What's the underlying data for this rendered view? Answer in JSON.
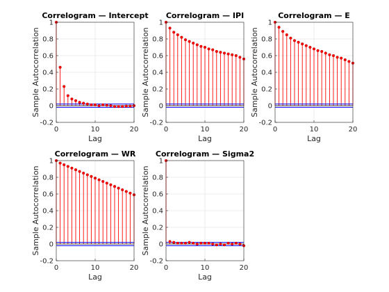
{
  "colors": {
    "stem": "#ff0000",
    "marker": "#ff0000",
    "bound": "#0000ff",
    "zero_line": "#000000",
    "grid": "#dedede",
    "axes": "#262626"
  },
  "chart_data": [
    {
      "type": "stem",
      "title": "Correlogram — Intercept",
      "xlabel": "Lag",
      "ylabel": "Sample Autocorrelation",
      "xlim": [
        0,
        20
      ],
      "ylim": [
        -0.2,
        1
      ],
      "xticks": [
        0,
        10,
        20
      ],
      "yticks": [
        -0.2,
        0,
        0.2,
        0.4,
        0.6,
        0.8,
        1
      ],
      "grid": true,
      "bounds": [
        0.02,
        -0.02
      ],
      "x": [
        0,
        1,
        2,
        3,
        4,
        5,
        6,
        7,
        8,
        9,
        10,
        11,
        12,
        13,
        14,
        15,
        16,
        17,
        18,
        19,
        20
      ],
      "values": [
        1,
        0.46,
        0.23,
        0.12,
        0.08,
        0.06,
        0.04,
        0.03,
        0.02,
        0.01,
        0.01,
        0.0,
        0.01,
        0.005,
        0.0,
        -0.01,
        -0.01,
        -0.01,
        -0.005,
        -0.005,
        0.0
      ]
    },
    {
      "type": "stem",
      "title": "Correlogram — IPI",
      "xlabel": "Lag",
      "ylabel": "Sample Autocorrelation",
      "xlim": [
        0,
        20
      ],
      "ylim": [
        -0.2,
        1
      ],
      "xticks": [
        0,
        10,
        20
      ],
      "yticks": [
        -0.2,
        0,
        0.2,
        0.4,
        0.6,
        0.8,
        1
      ],
      "grid": true,
      "bounds": [
        0.02,
        -0.02
      ],
      "x": [
        0,
        1,
        2,
        3,
        4,
        5,
        6,
        7,
        8,
        9,
        10,
        11,
        12,
        13,
        14,
        15,
        16,
        17,
        18,
        19,
        20
      ],
      "values": [
        1,
        0.93,
        0.88,
        0.85,
        0.82,
        0.79,
        0.77,
        0.75,
        0.73,
        0.71,
        0.7,
        0.68,
        0.67,
        0.65,
        0.64,
        0.63,
        0.62,
        0.61,
        0.6,
        0.58,
        0.56
      ]
    },
    {
      "type": "stem",
      "title": "Correlogram — E",
      "xlabel": "Lag",
      "ylabel": "Sample Autocorrelation",
      "xlim": [
        0,
        20
      ],
      "ylim": [
        -0.2,
        1
      ],
      "xticks": [
        0,
        10,
        20
      ],
      "yticks": [
        -0.2,
        0,
        0.2,
        0.4,
        0.6,
        0.8,
        1
      ],
      "grid": true,
      "bounds": [
        0.02,
        -0.02
      ],
      "x": [
        0,
        1,
        2,
        3,
        4,
        5,
        6,
        7,
        8,
        9,
        10,
        11,
        12,
        13,
        14,
        15,
        16,
        17,
        18,
        19,
        20
      ],
      "values": [
        1,
        0.94,
        0.89,
        0.85,
        0.81,
        0.78,
        0.76,
        0.74,
        0.72,
        0.7,
        0.68,
        0.66,
        0.65,
        0.63,
        0.61,
        0.6,
        0.58,
        0.57,
        0.55,
        0.53,
        0.51
      ]
    },
    {
      "type": "stem",
      "title": "Correlogram — WR",
      "xlabel": "Lag",
      "ylabel": "Sample Autocorrelation",
      "xlim": [
        0,
        20
      ],
      "ylim": [
        -0.2,
        1
      ],
      "xticks": [
        0,
        10,
        20
      ],
      "yticks": [
        -0.2,
        0,
        0.2,
        0.4,
        0.6,
        0.8,
        1
      ],
      "grid": true,
      "bounds": [
        0.02,
        -0.02
      ],
      "x": [
        0,
        1,
        2,
        3,
        4,
        5,
        6,
        7,
        8,
        9,
        10,
        11,
        12,
        13,
        14,
        15,
        16,
        17,
        18,
        19,
        20
      ],
      "values": [
        1,
        0.97,
        0.95,
        0.93,
        0.91,
        0.89,
        0.87,
        0.85,
        0.83,
        0.81,
        0.79,
        0.77,
        0.75,
        0.73,
        0.71,
        0.69,
        0.67,
        0.65,
        0.63,
        0.61,
        0.59
      ]
    },
    {
      "type": "stem",
      "title": "Correlogram  — Sigma2",
      "xlabel": "Lag",
      "ylabel": "Sample Autocorrelation",
      "xlim": [
        0,
        20
      ],
      "ylim": [
        -0.2,
        1
      ],
      "xticks": [
        0,
        10,
        20
      ],
      "yticks": [
        -0.2,
        0,
        0.2,
        0.4,
        0.6,
        0.8,
        1
      ],
      "grid": true,
      "bounds": [
        0.02,
        -0.02
      ],
      "x": [
        0,
        1,
        2,
        3,
        4,
        5,
        6,
        7,
        8,
        9,
        10,
        11,
        12,
        13,
        14,
        15,
        16,
        17,
        18,
        19,
        20
      ],
      "values": [
        1,
        0.03,
        0.02,
        0.01,
        0.01,
        0.01,
        0.02,
        0.01,
        0.0,
        0.01,
        0.01,
        0.01,
        0.0,
        -0.01,
        0.0,
        -0.01,
        0.01,
        0.0,
        0.01,
        0.0,
        -0.02
      ]
    }
  ]
}
